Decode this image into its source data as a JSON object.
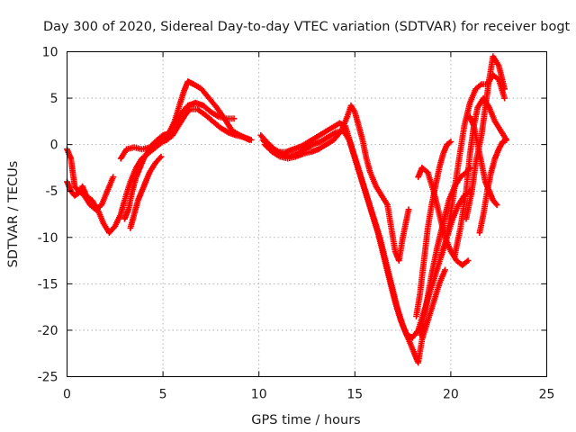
{
  "chart_data": {
    "type": "scatter",
    "title": "Day 300 of 2020, Sidereal Day-to-day VTEC variation (SDTVAR) for receiver bogt",
    "xlabel": "GPS time / hours",
    "ylabel": "SDTVAR / TECUs",
    "xlim": [
      0,
      25
    ],
    "ylim": [
      -25,
      10
    ],
    "xticks": [
      "0",
      "5",
      "10",
      "15",
      "20",
      "25"
    ],
    "yticks": [
      "10",
      "5",
      "0",
      "-5",
      "-10",
      "-15",
      "-20",
      "-25"
    ],
    "grid": true,
    "marker": "+",
    "color": "#ff0000",
    "series": [
      {
        "points": [
          [
            0.0,
            -0.5
          ],
          [
            0.2,
            -1.5
          ],
          [
            0.3,
            -3.0
          ],
          [
            0.4,
            -4.5
          ],
          [
            0.6,
            -5.0
          ],
          [
            0.9,
            -5.5
          ],
          [
            1.2,
            -6.5
          ],
          [
            1.5,
            -7.0
          ],
          [
            1.8,
            -6.5
          ],
          [
            2.1,
            -5.0
          ],
          [
            2.4,
            -3.5
          ]
        ]
      },
      {
        "points": [
          [
            0.0,
            -4.0
          ],
          [
            0.2,
            -5.0
          ],
          [
            0.4,
            -5.5
          ],
          [
            0.6,
            -5.2
          ],
          [
            0.8,
            -4.5
          ],
          [
            1.0,
            -5.5
          ],
          [
            1.3,
            -6.0
          ],
          [
            1.6,
            -7.0
          ],
          [
            1.9,
            -8.5
          ],
          [
            2.2,
            -9.5
          ],
          [
            2.5,
            -8.8
          ],
          [
            2.8,
            -7.5
          ],
          [
            3.0,
            -6.0
          ],
          [
            3.3,
            -4.0
          ],
          [
            3.6,
            -2.5
          ],
          [
            3.9,
            -1.5
          ],
          [
            4.2,
            -1.0
          ],
          [
            4.5,
            -0.5
          ],
          [
            4.8,
            0.0
          ],
          [
            5.1,
            0.5
          ],
          [
            5.4,
            1.5
          ],
          [
            5.7,
            2.5
          ],
          [
            6.0,
            3.5
          ],
          [
            6.3,
            4.2
          ],
          [
            6.7,
            4.5
          ],
          [
            7.1,
            4.2
          ],
          [
            7.5,
            3.5
          ],
          [
            7.9,
            3.0
          ],
          [
            8.3,
            2.8
          ],
          [
            8.7,
            2.8
          ]
        ]
      },
      {
        "points": [
          [
            2.8,
            -1.5
          ],
          [
            3.1,
            -0.5
          ],
          [
            3.5,
            -0.3
          ],
          [
            3.9,
            -0.5
          ],
          [
            4.3,
            -0.3
          ],
          [
            4.7,
            0.5
          ],
          [
            5.0,
            1.0
          ],
          [
            5.3,
            1.2
          ],
          [
            5.6,
            2.5
          ],
          [
            5.9,
            4.5
          ],
          [
            6.1,
            5.8
          ],
          [
            6.3,
            6.8
          ],
          [
            6.6,
            6.5
          ],
          [
            7.0,
            6.0
          ],
          [
            7.4,
            5.0
          ],
          [
            7.8,
            4.0
          ],
          [
            8.2,
            2.8
          ],
          [
            8.6,
            1.5
          ],
          [
            9.0,
            1.0
          ],
          [
            9.5,
            0.5
          ]
        ]
      },
      {
        "points": [
          [
            3.0,
            -8.0
          ],
          [
            3.2,
            -7.0
          ],
          [
            3.4,
            -5.0
          ],
          [
            3.6,
            -3.5
          ],
          [
            3.8,
            -2.5
          ],
          [
            4.0,
            -1.5
          ],
          [
            4.3,
            -0.5
          ],
          [
            4.6,
            0.0
          ],
          [
            4.9,
            0.3
          ],
          [
            5.2,
            0.5
          ],
          [
            5.5,
            1.0
          ],
          [
            5.8,
            2.0
          ],
          [
            6.1,
            3.0
          ],
          [
            6.4,
            3.8
          ],
          [
            6.8,
            3.8
          ],
          [
            7.2,
            3.2
          ],
          [
            7.6,
            2.5
          ],
          [
            8.0,
            1.8
          ],
          [
            8.4,
            1.3
          ],
          [
            8.8,
            1.0
          ],
          [
            9.2,
            0.8
          ],
          [
            9.6,
            0.5
          ]
        ]
      },
      {
        "points": [
          [
            3.3,
            -9.0
          ],
          [
            3.5,
            -7.5
          ],
          [
            3.7,
            -6.0
          ],
          [
            3.9,
            -5.0
          ],
          [
            4.1,
            -4.0
          ],
          [
            4.3,
            -3.0
          ],
          [
            4.6,
            -2.0
          ],
          [
            4.9,
            -1.3
          ]
        ]
      },
      {
        "points": [
          [
            10.1,
            1.0
          ],
          [
            10.4,
            0.3
          ],
          [
            10.8,
            -0.5
          ],
          [
            11.2,
            -1.0
          ],
          [
            11.6,
            -1.3
          ],
          [
            12.0,
            -1.0
          ],
          [
            12.4,
            -0.5
          ],
          [
            12.8,
            0.0
          ],
          [
            13.2,
            0.3
          ],
          [
            13.6,
            0.8
          ],
          [
            14.0,
            1.3
          ],
          [
            14.4,
            1.5
          ],
          [
            14.7,
            0.5
          ],
          [
            15.0,
            -1.5
          ],
          [
            15.3,
            -3.5
          ],
          [
            15.6,
            -5.5
          ],
          [
            15.9,
            -7.5
          ],
          [
            16.2,
            -9.5
          ],
          [
            16.5,
            -12.0
          ],
          [
            16.8,
            -14.5
          ],
          [
            17.1,
            -17.0
          ],
          [
            17.4,
            -19.0
          ],
          [
            17.7,
            -20.5
          ],
          [
            18.0,
            -20.8
          ],
          [
            18.3,
            -20.0
          ],
          [
            18.6,
            -18.0
          ],
          [
            18.9,
            -16.0
          ],
          [
            19.2,
            -14.0
          ],
          [
            19.5,
            -12.0
          ],
          [
            19.8,
            -10.0
          ],
          [
            20.1,
            -8.0
          ],
          [
            20.4,
            -6.5
          ],
          [
            20.7,
            -5.5
          ],
          [
            21.0,
            -5.0
          ]
        ]
      },
      {
        "points": [
          [
            10.2,
            0.5
          ],
          [
            10.6,
            -0.3
          ],
          [
            11.0,
            -0.8
          ],
          [
            11.4,
            -0.8
          ],
          [
            11.8,
            -0.5
          ],
          [
            12.2,
            -0.2
          ],
          [
            12.6,
            0.3
          ],
          [
            13.0,
            0.8
          ],
          [
            13.4,
            1.3
          ],
          [
            13.8,
            1.8
          ],
          [
            14.2,
            2.3
          ],
          [
            14.5,
            2.0
          ],
          [
            14.8,
            0.0
          ],
          [
            15.1,
            -2.0
          ],
          [
            15.4,
            -4.0
          ],
          [
            15.7,
            -6.0
          ],
          [
            16.0,
            -8.0
          ],
          [
            16.3,
            -10.0
          ],
          [
            16.6,
            -12.5
          ],
          [
            16.9,
            -15.0
          ],
          [
            17.2,
            -17.5
          ],
          [
            17.5,
            -19.5
          ],
          [
            17.8,
            -21.0
          ],
          [
            18.1,
            -22.5
          ],
          [
            18.3,
            -23.5
          ],
          [
            18.5,
            -21.0
          ],
          [
            18.8,
            -19.0
          ],
          [
            19.1,
            -17.0
          ],
          [
            19.4,
            -15.0
          ],
          [
            19.7,
            -13.5
          ]
        ]
      },
      {
        "points": [
          [
            10.3,
            0.0
          ],
          [
            10.7,
            -0.8
          ],
          [
            11.1,
            -1.3
          ],
          [
            11.5,
            -1.5
          ],
          [
            11.9,
            -1.3
          ],
          [
            12.3,
            -1.0
          ],
          [
            12.7,
            -0.8
          ],
          [
            13.1,
            -0.5
          ],
          [
            13.5,
            0.0
          ],
          [
            13.9,
            0.5
          ],
          [
            14.3,
            1.5
          ],
          [
            14.6,
            3.0
          ],
          [
            14.8,
            4.2
          ],
          [
            15.0,
            3.5
          ],
          [
            15.2,
            2.0
          ],
          [
            15.4,
            0.5
          ],
          [
            15.6,
            -1.5
          ],
          [
            15.8,
            -3.0
          ],
          [
            16.1,
            -4.5
          ],
          [
            16.4,
            -5.5
          ],
          [
            16.7,
            -6.5
          ],
          [
            16.9,
            -9.0
          ],
          [
            17.1,
            -11.5
          ],
          [
            17.3,
            -12.5
          ],
          [
            17.5,
            -10.0
          ],
          [
            17.7,
            -8.0
          ],
          [
            17.8,
            -7.0
          ]
        ]
      },
      {
        "points": [
          [
            18.2,
            -18.5
          ],
          [
            18.4,
            -16.0
          ],
          [
            18.6,
            -12.5
          ],
          [
            18.8,
            -9.0
          ],
          [
            19.0,
            -6.5
          ],
          [
            19.2,
            -4.5
          ],
          [
            19.4,
            -2.5
          ],
          [
            19.6,
            -1.0
          ],
          [
            19.8,
            0.0
          ],
          [
            20.0,
            0.3
          ]
        ]
      },
      {
        "points": [
          [
            18.4,
            -20.5
          ],
          [
            18.7,
            -17.5
          ],
          [
            19.0,
            -14.0
          ],
          [
            19.3,
            -11.0
          ],
          [
            19.6,
            -8.5
          ],
          [
            19.9,
            -6.0
          ],
          [
            20.2,
            -4.5
          ],
          [
            20.5,
            -3.5
          ],
          [
            20.8,
            -3.0
          ],
          [
            21.0,
            -2.5
          ]
        ]
      },
      {
        "points": [
          [
            18.3,
            -3.5
          ],
          [
            18.5,
            -2.5
          ],
          [
            18.8,
            -3.0
          ],
          [
            19.1,
            -5.0
          ],
          [
            19.4,
            -7.5
          ],
          [
            19.7,
            -10.0
          ],
          [
            20.0,
            -11.5
          ],
          [
            20.3,
            -12.5
          ],
          [
            20.6,
            -13.0
          ],
          [
            20.9,
            -12.5
          ]
        ]
      },
      {
        "points": [
          [
            19.5,
            -12.0
          ],
          [
            19.8,
            -10.0
          ],
          [
            20.1,
            -6.0
          ],
          [
            20.4,
            -2.0
          ],
          [
            20.7,
            2.0
          ],
          [
            21.0,
            4.5
          ],
          [
            21.3,
            6.0
          ],
          [
            21.6,
            6.5
          ],
          [
            21.9,
            6.5
          ],
          [
            22.2,
            7.5
          ],
          [
            22.5,
            7.0
          ],
          [
            22.8,
            5.0
          ]
        ]
      },
      {
        "points": [
          [
            20.2,
            -12.0
          ],
          [
            20.5,
            -9.0
          ],
          [
            20.8,
            -5.0
          ],
          [
            21.0,
            -1.0
          ],
          [
            21.2,
            2.0
          ],
          [
            21.4,
            4.0
          ],
          [
            21.7,
            5.0
          ],
          [
            22.0,
            4.0
          ],
          [
            22.3,
            2.5
          ],
          [
            22.6,
            1.5
          ],
          [
            22.9,
            0.5
          ]
        ]
      },
      {
        "points": [
          [
            20.8,
            -8.0
          ],
          [
            21.1,
            -5.0
          ],
          [
            21.3,
            -2.0
          ],
          [
            21.6,
            1.0
          ],
          [
            21.8,
            4.0
          ],
          [
            22.0,
            7.0
          ],
          [
            22.2,
            9.5
          ],
          [
            22.5,
            8.5
          ],
          [
            22.8,
            6.0
          ]
        ]
      },
      {
        "points": [
          [
            21.5,
            -9.5
          ],
          [
            21.7,
            -7.5
          ],
          [
            21.9,
            -5.0
          ],
          [
            22.1,
            -3.0
          ],
          [
            22.3,
            -1.5
          ],
          [
            22.5,
            -0.5
          ],
          [
            22.7,
            0.3
          ],
          [
            22.9,
            0.5
          ]
        ]
      },
      {
        "points": [
          [
            21.0,
            3.0
          ],
          [
            21.2,
            2.0
          ],
          [
            21.4,
            0.0
          ],
          [
            21.6,
            -2.0
          ],
          [
            21.8,
            -4.0
          ],
          [
            22.0,
            -5.0
          ],
          [
            22.2,
            -6.0
          ],
          [
            22.4,
            -6.5
          ]
        ]
      }
    ]
  }
}
